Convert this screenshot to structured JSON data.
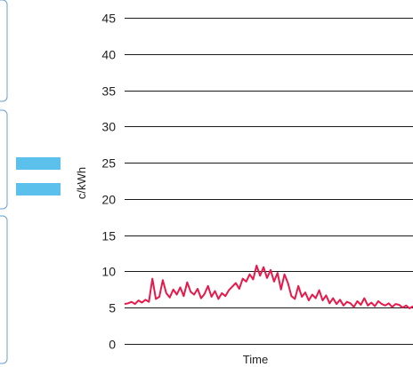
{
  "colors": {
    "card_border": "#6a9fcf",
    "equals_sign": "#5bc0eb",
    "series_line": "#e8194a",
    "grid": "#1a1a1a"
  },
  "decor": {
    "cards": 3,
    "equals_icon": "equals-icon"
  },
  "chart_data": {
    "type": "line",
    "title": "",
    "xlabel": "Time",
    "ylabel": "c/kWh",
    "ylim": [
      0,
      45
    ],
    "yticks": [
      0,
      5,
      10,
      15,
      20,
      25,
      30,
      35,
      40,
      45
    ],
    "grid": true,
    "legend": "none",
    "series": [
      {
        "values": [
          5.5,
          5.6,
          5.8,
          5.5,
          6.0,
          5.7,
          6.1,
          5.8,
          9.0,
          6.2,
          6.5,
          8.8,
          7.0,
          6.4,
          7.5,
          6.8,
          7.8,
          6.6,
          8.5,
          7.2,
          6.8,
          7.6,
          6.3,
          6.9,
          8.0,
          6.5,
          7.3,
          6.2,
          7.0,
          6.6,
          7.4,
          7.9,
          8.4,
          7.6,
          9.0,
          8.6,
          9.6,
          8.9,
          10.8,
          9.4,
          10.6,
          9.1,
          10.2,
          8.6,
          9.8,
          7.5,
          9.6,
          8.4,
          6.6,
          6.2,
          8.0,
          6.5,
          7.1,
          6.0,
          6.8,
          6.3,
          7.4,
          6.0,
          6.7,
          5.6,
          6.3,
          5.5,
          6.1,
          5.3,
          5.8,
          5.6,
          5.1,
          5.9,
          5.4,
          6.3,
          5.3,
          5.7,
          5.2,
          5.9,
          5.5,
          5.3,
          5.6,
          5.1,
          5.5,
          5.4,
          5.0,
          5.3,
          4.9,
          5.2
        ]
      }
    ]
  }
}
